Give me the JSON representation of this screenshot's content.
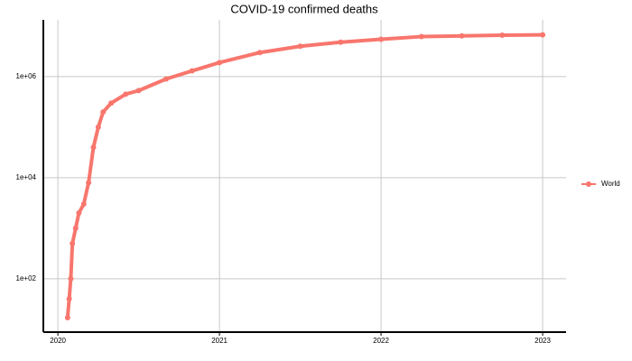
{
  "chart_data": {
    "type": "line",
    "title": "COVID-19 confirmed deaths",
    "x": [
      2020.06,
      2020.07,
      2020.08,
      2020.09,
      2020.11,
      2020.13,
      2020.16,
      2020.19,
      2020.22,
      2020.25,
      2020.28,
      2020.33,
      2020.42,
      2020.5,
      2020.67,
      2020.83,
      2021.0,
      2021.25,
      2021.5,
      2021.75,
      2022.0,
      2022.25,
      2022.5,
      2022.75,
      2023.0
    ],
    "series": [
      {
        "name": "World",
        "color": "#f8766d",
        "values": [
          17,
          40,
          100,
          500,
          1000,
          2000,
          3000,
          8000,
          40000,
          100000,
          200000,
          300000,
          450000,
          530000,
          900000,
          1300000,
          1900000,
          3000000,
          4000000,
          4800000,
          5500000,
          6200000,
          6400000,
          6600000,
          6700000
        ]
      }
    ],
    "xlim": [
      2019.91,
      2023.145
    ],
    "xticks": [
      2020,
      2021,
      2022,
      2023
    ],
    "ylim": [
      8.8,
      13300000
    ],
    "ylog": true,
    "yticks": [
      {
        "value": 100,
        "label": "1e+02"
      },
      {
        "value": 10000,
        "label": "1e+04"
      },
      {
        "value": 1000000,
        "label": "1e+06"
      }
    ],
    "grid": true,
    "legend": "right"
  }
}
